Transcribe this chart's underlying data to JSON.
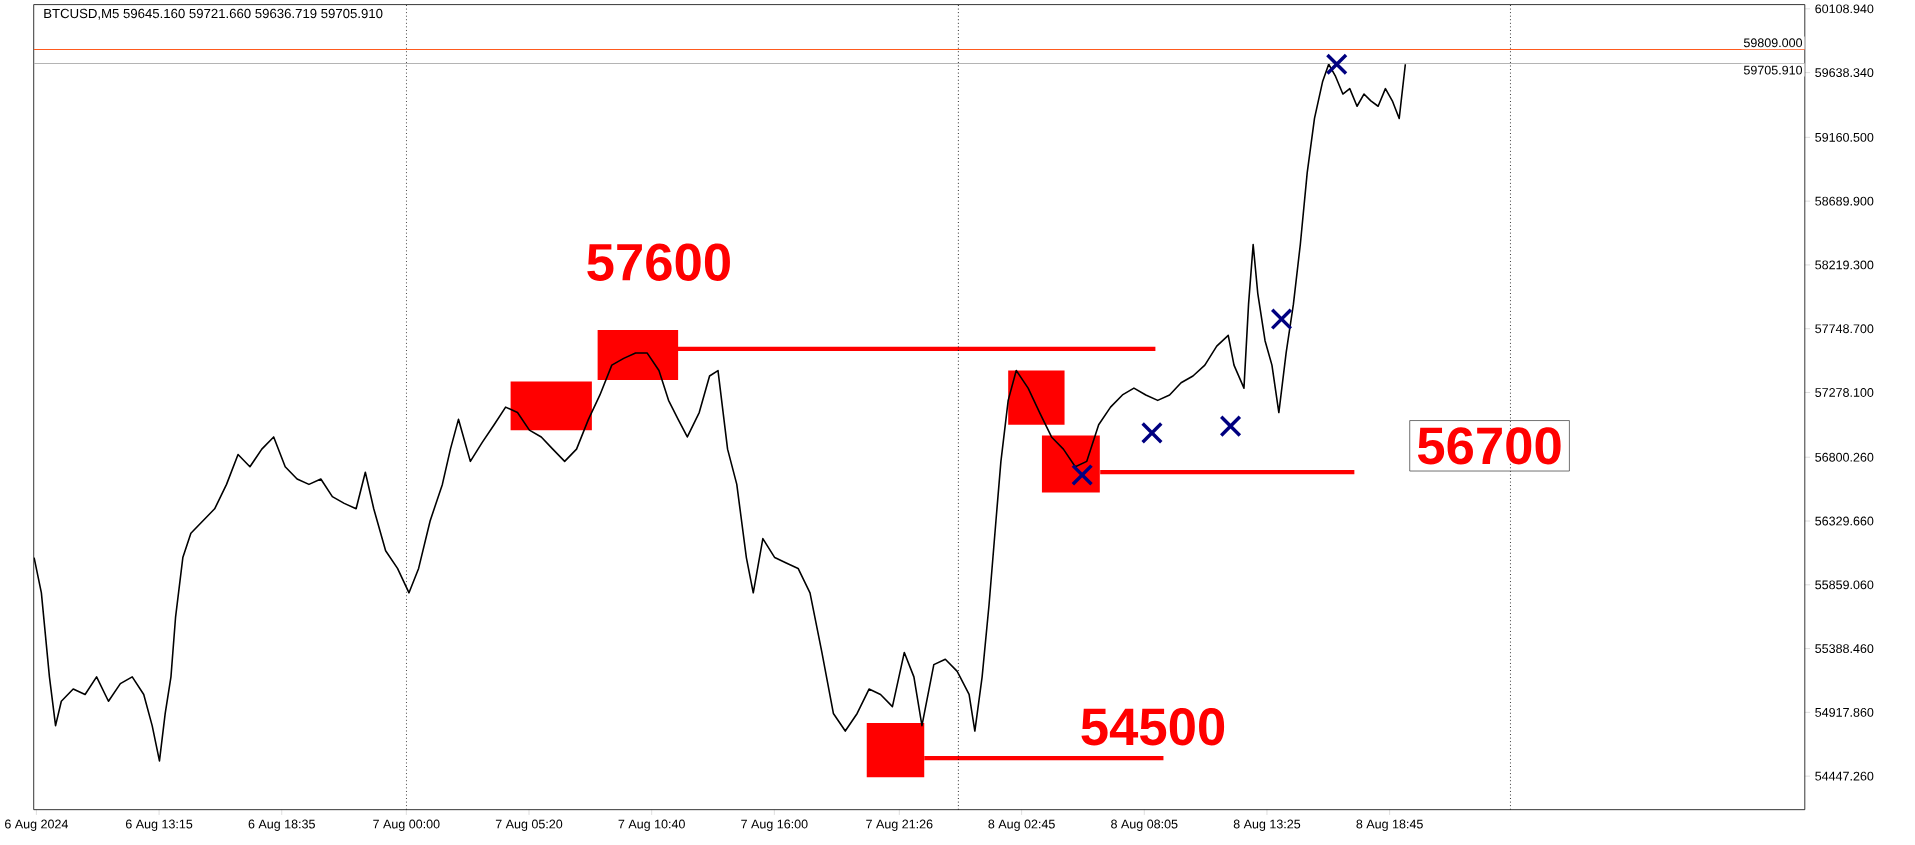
{
  "chart_data": {
    "type": "line",
    "title": "BTCUSD,M5  59645.160 59721.660 59636.719 59705.910",
    "xlim": [
      "2024-08-06T07:48",
      "2024-08-09T12:48"
    ],
    "ylim": [
      54200,
      60140
    ],
    "xticks": [
      {
        "value": "2024-08-06T07:55",
        "label": "6 Aug 2024"
      },
      {
        "value": "2024-08-06T13:15",
        "label": "6 Aug 13:15"
      },
      {
        "value": "2024-08-06T18:35",
        "label": "6 Aug 18:35"
      },
      {
        "value": "2024-08-07T00:00",
        "label": "7 Aug 00:00"
      },
      {
        "value": "2024-08-07T05:20",
        "label": "7 Aug 05:20"
      },
      {
        "value": "2024-08-07T10:40",
        "label": "7 Aug 10:40"
      },
      {
        "value": "2024-08-07T16:00",
        "label": "7 Aug 16:00"
      },
      {
        "value": "2024-08-07T21:26",
        "label": "7 Aug 21:26"
      },
      {
        "value": "2024-08-08T02:45",
        "label": "8 Aug 02:45"
      },
      {
        "value": "2024-08-08T08:05",
        "label": "8 Aug 08:05"
      },
      {
        "value": "2024-08-08T13:25",
        "label": "8 Aug 13:25"
      },
      {
        "value": "2024-08-08T18:45",
        "label": "8 Aug 18:45"
      }
    ],
    "yticks": [
      {
        "value": 60108.94,
        "label": "60108.940"
      },
      {
        "value": 59638.34,
        "label": "59638.340"
      },
      {
        "value": 59160.5,
        "label": "59160.500"
      },
      {
        "value": 58689.9,
        "label": "58689.900"
      },
      {
        "value": 58219.3,
        "label": "58219.300"
      },
      {
        "value": 57748.7,
        "label": "57748.700"
      },
      {
        "value": 57278.1,
        "label": "57278.100"
      },
      {
        "value": 56800.26,
        "label": "56800.260"
      },
      {
        "value": 56329.66,
        "label": "56329.660"
      },
      {
        "value": 55859.06,
        "label": "55859.060"
      },
      {
        "value": 55388.46,
        "label": "55388.460"
      },
      {
        "value": 54917.86,
        "label": "54917.860"
      },
      {
        "value": 54447.26,
        "label": "54447.260"
      }
    ],
    "series": [
      {
        "type": "area",
        "color": "#ff0000",
        "x": [
          "2024-08-07T04:32",
          "2024-08-07T08:04"
        ],
        "lower": [
          57000,
          57000
        ],
        "upper": [
          57360,
          57360
        ],
        "values": [
          null,
          null
        ]
      },
      {
        "type": "area",
        "color": "#ff0000",
        "x": [
          "2024-08-07T08:19",
          "2024-08-07T11:49"
        ],
        "lower": [
          57370,
          57370
        ],
        "upper": [
          57740,
          57740
        ],
        "values": [
          null,
          null
        ]
      },
      {
        "type": "area",
        "color": "#ff0000",
        "x": [
          "2024-08-07T20:01",
          "2024-08-07T22:31"
        ],
        "lower": [
          54440,
          54440
        ],
        "upper": [
          54840,
          54840
        ],
        "values": [
          null,
          null
        ]
      },
      {
        "type": "area",
        "color": "#ff0000",
        "x": [
          "2024-08-08T02:10",
          "2024-08-08T04:37"
        ],
        "lower": [
          57040,
          57040
        ],
        "upper": [
          57440,
          57440
        ],
        "values": [
          null,
          null
        ]
      },
      {
        "type": "area",
        "color": "#ff0000",
        "x": [
          "2024-08-08T03:38",
          "2024-08-08T06:09"
        ],
        "lower": [
          56540,
          56540
        ],
        "upper": [
          56960,
          56960
        ],
        "values": [
          null,
          null
        ]
      },
      {
        "color": "#000000",
        "x": [
          "2024-08-06T07:49",
          "2024-08-06T08:08",
          "2024-08-06T08:29",
          "2024-08-06T08:45",
          "2024-08-06T09:00",
          "2024-08-06T09:31",
          "2024-08-06T10:02",
          "2024-08-06T10:32",
          "2024-08-06T11:03",
          "2024-08-06T11:34",
          "2024-08-06T12:05",
          "2024-08-06T12:35",
          "2024-08-06T12:57",
          "2024-08-06T13:16",
          "2024-08-06T13:31",
          "2024-08-06T13:46",
          "2024-08-06T13:58",
          "2024-08-06T14:17",
          "2024-08-06T14:38",
          "2024-08-06T15:09",
          "2024-08-06T15:40",
          "2024-08-06T16:11",
          "2024-08-06T16:41",
          "2024-08-06T17:12",
          "2024-08-06T17:43",
          "2024-08-06T18:14",
          "2024-08-06T18:44",
          "2024-08-06T19:15",
          "2024-08-06T19:46",
          "2024-08-06T20:17",
          "2024-08-06T20:47",
          "2024-08-06T21:18",
          "2024-08-06T21:49",
          "2024-08-06T22:13",
          "2024-08-06T22:35",
          "2024-08-06T23:06",
          "2024-08-06T23:37",
          "2024-08-07T00:07",
          "2024-08-07T00:32",
          "2024-08-07T01:02",
          "2024-08-07T01:34",
          "2024-08-07T01:55",
          "2024-08-07T02:16",
          "2024-08-07T02:47",
          "2024-08-07T03:18",
          "2024-08-07T03:49",
          "2024-08-07T04:19",
          "2024-08-07T04:50",
          "2024-08-07T05:21",
          "2024-08-07T05:52",
          "2024-08-07T06:22",
          "2024-08-07T06:53",
          "2024-08-07T07:24",
          "2024-08-07T07:55",
          "2024-08-07T08:25",
          "2024-08-07T08:56",
          "2024-08-07T09:27",
          "2024-08-07T09:58",
          "2024-08-07T10:28",
          "2024-08-07T10:59",
          "2024-08-07T11:24",
          "2024-08-07T11:49",
          "2024-08-07T12:13",
          "2024-08-07T12:44",
          "2024-08-07T13:11",
          "2024-08-07T13:33",
          "2024-08-07T13:58",
          "2024-08-07T14:22",
          "2024-08-07T14:47",
          "2024-08-07T15:05",
          "2024-08-07T15:30",
          "2024-08-07T16:01",
          "2024-08-07T16:31",
          "2024-08-07T17:02",
          "2024-08-07T17:33",
          "2024-08-07T18:04",
          "2024-08-07T18:34",
          "2024-08-07T19:05",
          "2024-08-07T19:36",
          "2024-08-07T20:07",
          "2024-08-07T20:37",
          "2024-08-07T21:08",
          "2024-08-07T21:39",
          "2024-08-07T22:04",
          "2024-08-07T22:25",
          "2024-08-07T22:56",
          "2024-08-07T23:26",
          "2024-08-07T23:57",
          "2024-08-08T00:28",
          "2024-08-08T00:43",
          "2024-08-08T01:02",
          "2024-08-08T01:20",
          "2024-08-08T01:38",
          "2024-08-08T01:51",
          "2024-08-08T02:10",
          "2024-08-08T02:31",
          "2024-08-08T03:02",
          "2024-08-08T03:32",
          "2024-08-08T04:03",
          "2024-08-08T04:34",
          "2024-08-08T05:05",
          "2024-08-08T05:35",
          "2024-08-08T06:06",
          "2024-08-08T06:37",
          "2024-08-08T07:08",
          "2024-08-08T07:38",
          "2024-08-08T08:09",
          "2024-08-08T08:40",
          "2024-08-08T09:11",
          "2024-08-08T09:41",
          "2024-08-08T10:12",
          "2024-08-08T10:43",
          "2024-08-08T11:14",
          "2024-08-08T11:44",
          "2024-08-08T11:59",
          "2024-08-08T12:25",
          "2024-08-08T12:37",
          "2024-08-08T12:49",
          "2024-08-08T13:01",
          "2024-08-08T13:20",
          "2024-08-08T13:38",
          "2024-08-08T13:56",
          "2024-08-08T14:15",
          "2024-08-08T14:34",
          "2024-08-08T14:52",
          "2024-08-08T15:10",
          "2024-08-08T15:29",
          "2024-08-08T15:50",
          "2024-08-08T16:06",
          "2024-08-08T16:24",
          "2024-08-08T16:43",
          "2024-08-08T17:01",
          "2024-08-08T17:20",
          "2024-08-08T17:38",
          "2024-08-08T17:56",
          "2024-08-08T18:15",
          "2024-08-08T18:34",
          "2024-08-08T18:52",
          "2024-08-08T19:10",
          "2024-08-08T19:26"
        ],
        "values": [
          56060,
          55800,
          55180,
          54820,
          55000,
          55090,
          55050,
          55180,
          55000,
          55130,
          55180,
          55050,
          54820,
          54560,
          54910,
          55180,
          55620,
          56060,
          56240,
          56330,
          56420,
          56600,
          56820,
          56730,
          56860,
          56950,
          56730,
          56640,
          56600,
          56640,
          56510,
          56460,
          56420,
          56690,
          56420,
          56110,
          55980,
          55800,
          55980,
          56330,
          56600,
          56860,
          57080,
          56770,
          56910,
          57040,
          57170,
          57130,
          57000,
          56950,
          56860,
          56770,
          56860,
          57080,
          57260,
          57480,
          57530,
          57570,
          57570,
          57440,
          57220,
          57080,
          56950,
          57130,
          57400,
          57440,
          56860,
          56600,
          56060,
          55800,
          56200,
          56060,
          56020,
          55980,
          55800,
          55360,
          54910,
          54780,
          54910,
          55090,
          55050,
          54960,
          55360,
          55180,
          54820,
          55270,
          55310,
          55220,
          55050,
          54780,
          55180,
          55710,
          56330,
          56770,
          57220,
          57440,
          57310,
          57130,
          56950,
          56860,
          56730,
          56770,
          57040,
          57170,
          57260,
          57310,
          57260,
          57220,
          57260,
          57350,
          57400,
          57480,
          57620,
          57700,
          57480,
          57310,
          57930,
          58370,
          58010,
          57660,
          57480,
          57130,
          57570,
          57930,
          58370,
          58900,
          59300,
          59570,
          59700,
          59610,
          59480,
          59520,
          59390,
          59480,
          59430,
          59390,
          59520,
          59430,
          59300,
          59700
        ]
      },
      {
        "type": "line",
        "color": "#ff0000",
        "x": [
          "2024-08-07T09:58",
          "2024-08-08T08:34"
        ],
        "values": [
          57600,
          57600
        ]
      },
      {
        "type": "line",
        "color": "#ff0000",
        "x": [
          "2024-08-07T22:31",
          "2024-08-08T08:55"
        ],
        "values": [
          54580,
          54580
        ]
      },
      {
        "type": "line",
        "color": "#ff0000",
        "x": [
          "2024-08-08T06:10",
          "2024-08-08T17:13"
        ],
        "values": [
          56690,
          56690
        ]
      },
      {
        "type": "scatter",
        "color": "#000080",
        "marker": "cross",
        "x": [
          "2024-08-08T05:23",
          "2024-08-08T08:25",
          "2024-08-08T11:50",
          "2024-08-08T14:03",
          "2024-08-08T16:27"
        ],
        "values": [
          56670,
          56980,
          57030,
          57820,
          59700
        ]
      }
    ],
    "ref_lines": [
      {
        "axis": "y",
        "value": 59809,
        "label": "59809.000",
        "color": "#ff5a1e",
        "line_style": "solid"
      },
      {
        "axis": "y",
        "value": 59705.91,
        "label": "59705.910",
        "color": "#b4b4b4",
        "line_style": "solid"
      },
      {
        "axis": "x",
        "value": "2024-08-07T00:00",
        "color": "#000000",
        "line_style": "dotted"
      },
      {
        "axis": "x",
        "value": "2024-08-08T00:00",
        "color": "#000000",
        "line_style": "dotted"
      },
      {
        "axis": "x",
        "value": "2024-08-09T00:00",
        "color": "#000000",
        "line_style": "dotted"
      }
    ],
    "annotations": [
      "57600",
      "54500",
      "56700"
    ]
  }
}
